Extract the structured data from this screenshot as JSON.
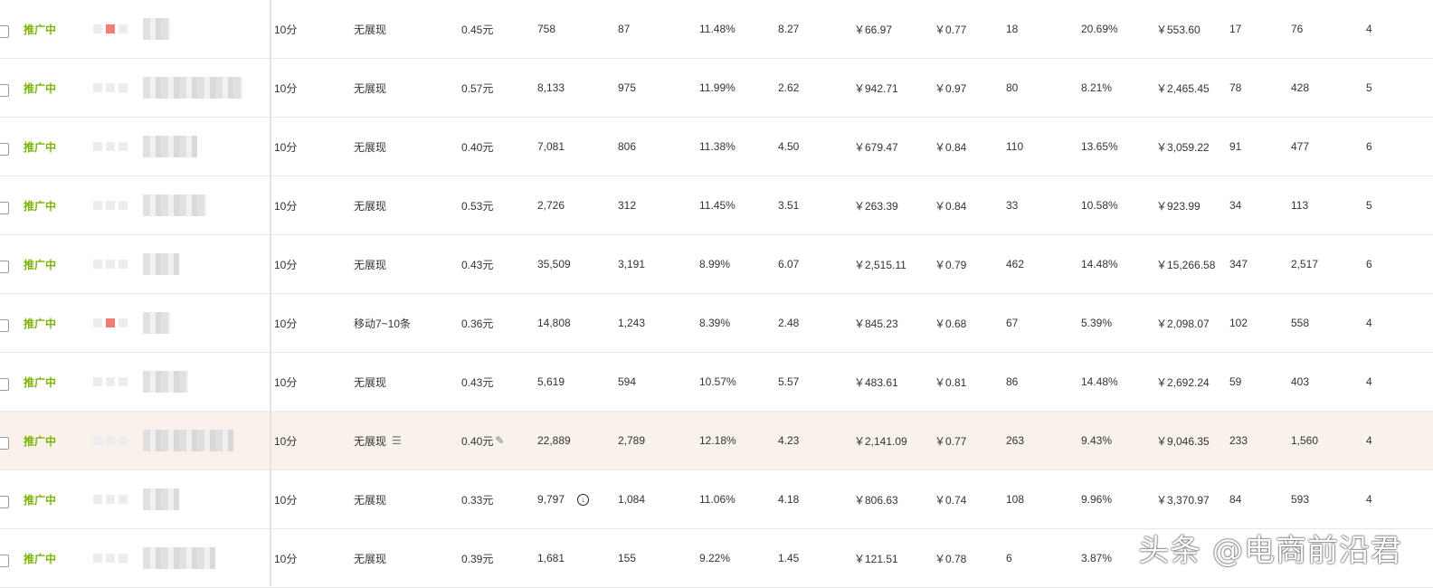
{
  "status_label": "推广中",
  "rows": [
    {
      "redblock": true,
      "blurw": 30,
      "c1": "10分",
      "c2": "无展现",
      "c3": "0.45元",
      "c4": "758",
      "c5": "87",
      "c6": "11.48%",
      "c7": "8.27",
      "c8": "￥66.97",
      "c9": "￥0.77",
      "c10": "18",
      "c11": "20.69%",
      "c12": "￥553.60",
      "c13": "17",
      "c14": "76",
      "c15": "4"
    },
    {
      "redblock": false,
      "blurw": 110,
      "c1": "10分",
      "c2": "无展现",
      "c3": "0.57元",
      "c4": "8,133",
      "c5": "975",
      "c6": "11.99%",
      "c7": "2.62",
      "c8": "￥942.71",
      "c9": "￥0.97",
      "c10": "80",
      "c11": "8.21%",
      "c12": "￥2,465.45",
      "c13": "78",
      "c14": "428",
      "c15": "5"
    },
    {
      "redblock": false,
      "blurw": 60,
      "c1": "10分",
      "c2": "无展现",
      "c3": "0.40元",
      "c4": "7,081",
      "c5": "806",
      "c6": "11.38%",
      "c7": "4.50",
      "c8": "￥679.47",
      "c9": "￥0.84",
      "c10": "110",
      "c11": "13.65%",
      "c12": "￥3,059.22",
      "c13": "91",
      "c14": "477",
      "c15": "6"
    },
    {
      "redblock": false,
      "blurw": 70,
      "c1": "10分",
      "c2": "无展现",
      "c3": "0.53元",
      "c4": "2,726",
      "c5": "312",
      "c6": "11.45%",
      "c7": "3.51",
      "c8": "￥263.39",
      "c9": "￥0.84",
      "c10": "33",
      "c11": "10.58%",
      "c12": "￥923.99",
      "c13": "34",
      "c14": "113",
      "c15": "5"
    },
    {
      "redblock": false,
      "blurw": 40,
      "c1": "10分",
      "c2": "无展现",
      "c3": "0.43元",
      "c4": "35,509",
      "c5": "3,191",
      "c6": "8.99%",
      "c7": "6.07",
      "c8": "￥2,515.11",
      "c9": "￥0.79",
      "c10": "462",
      "c11": "14.48%",
      "c12": "￥15,266.58",
      "c13": "347",
      "c14": "2,517",
      "c15": "6"
    },
    {
      "redblock": true,
      "blurw": 30,
      "c1": "10分",
      "c2": "移动7~10条",
      "c3": "0.36元",
      "c4": "14,808",
      "c5": "1,243",
      "c6": "8.39%",
      "c7": "2.48",
      "c8": "￥845.23",
      "c9": "￥0.68",
      "c10": "67",
      "c11": "5.39%",
      "c12": "￥2,098.07",
      "c13": "102",
      "c14": "558",
      "c15": "4"
    },
    {
      "redblock": false,
      "blurw": 50,
      "c1": "10分",
      "c2": "无展现",
      "c3": "0.43元",
      "c4": "5,619",
      "c5": "594",
      "c6": "10.57%",
      "c7": "5.57",
      "c8": "￥483.61",
      "c9": "￥0.81",
      "c10": "86",
      "c11": "14.48%",
      "c12": "￥2,692.24",
      "c13": "59",
      "c14": "403",
      "c15": "4"
    },
    {
      "redblock": false,
      "blurw": 100,
      "highlight": true,
      "c1": "10分",
      "c2": "无展现",
      "c3": "0.40元",
      "c4": "22,889",
      "c5": "2,789",
      "c6": "12.18%",
      "c7": "4.23",
      "c8": "￥2,141.09",
      "c9": "￥0.77",
      "c10": "263",
      "c11": "9.43%",
      "c12": "￥9,046.35",
      "c13": "233",
      "c14": "1,560",
      "c15": "4"
    },
    {
      "redblock": false,
      "blurw": 40,
      "download": true,
      "c1": "10分",
      "c2": "无展现",
      "c3": "0.33元",
      "c4": "9,797",
      "c5": "1,084",
      "c6": "11.06%",
      "c7": "4.18",
      "c8": "￥806.63",
      "c9": "￥0.74",
      "c10": "108",
      "c11": "9.96%",
      "c12": "￥3,370.97",
      "c13": "84",
      "c14": "593",
      "c15": "4"
    },
    {
      "redblock": false,
      "blurw": 80,
      "c1": "10分",
      "c2": "无展现",
      "c3": "0.39元",
      "c4": "1,681",
      "c5": "155",
      "c6": "9.22%",
      "c7": "1.45",
      "c8": "￥121.51",
      "c9": "￥0.78",
      "c10": "6",
      "c11": "3.87%",
      "c12": "",
      "c13": "",
      "c14": "",
      "c15": ""
    }
  ],
  "watermark": "头条 @电商前沿君",
  "colors": {
    "status": "#7cb305",
    "highlight_row": "#f8f2ea",
    "red_block": "#f07c72"
  },
  "icons": {
    "list": "list-icon",
    "edit": "pencil-icon",
    "download": "download-icon"
  }
}
